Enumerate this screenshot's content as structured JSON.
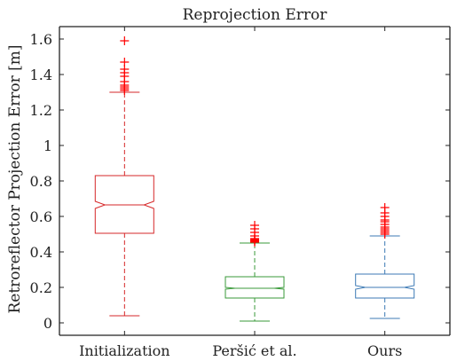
{
  "chart_data": {
    "type": "box",
    "title": "Reprojection Error",
    "xlabel": "",
    "ylabel": "Retroreflector Projection Error [m]",
    "ylim": [
      -0.07,
      1.67
    ],
    "yticks": [
      0,
      0.2,
      0.4,
      0.6,
      0.8,
      1,
      1.2,
      1.4,
      1.6
    ],
    "ytick_labels": [
      "0",
      "0.2",
      "0.4",
      "0.6",
      "0.8",
      "1",
      "1.2",
      "1.4",
      "1.6"
    ],
    "grid": false,
    "notched": true,
    "categories": [
      "Initialization",
      "Peršić et al.",
      "Ours"
    ],
    "boxes": [
      {
        "name": "Initialization",
        "color": "#d62728",
        "whisker_low": 0.04,
        "q1": 0.505,
        "median": 0.665,
        "q3": 0.83,
        "notch_low": 0.645,
        "notch_high": 0.685,
        "whisker_high": 1.3,
        "outliers": [
          1.31,
          1.32,
          1.33,
          1.34,
          1.36,
          1.39,
          1.41,
          1.43,
          1.47,
          1.59
        ]
      },
      {
        "name": "Peršić et al.",
        "color": "#3a9a3a",
        "whisker_low": 0.01,
        "q1": 0.14,
        "median": 0.195,
        "q3": 0.26,
        "notch_low": 0.19,
        "notch_high": 0.2,
        "whisker_high": 0.45,
        "outliers": [
          0.455,
          0.46,
          0.465,
          0.47,
          0.475,
          0.49,
          0.51,
          0.53,
          0.55
        ]
      },
      {
        "name": "Ours",
        "color": "#3d7ab5",
        "whisker_low": 0.025,
        "q1": 0.14,
        "median": 0.2,
        "q3": 0.275,
        "notch_low": 0.19,
        "notch_high": 0.21,
        "whisker_high": 0.49,
        "outliers": [
          0.5,
          0.51,
          0.52,
          0.53,
          0.54,
          0.555,
          0.57,
          0.58,
          0.6,
          0.62,
          0.65
        ]
      }
    ],
    "outlier_color": "#ff0000"
  }
}
